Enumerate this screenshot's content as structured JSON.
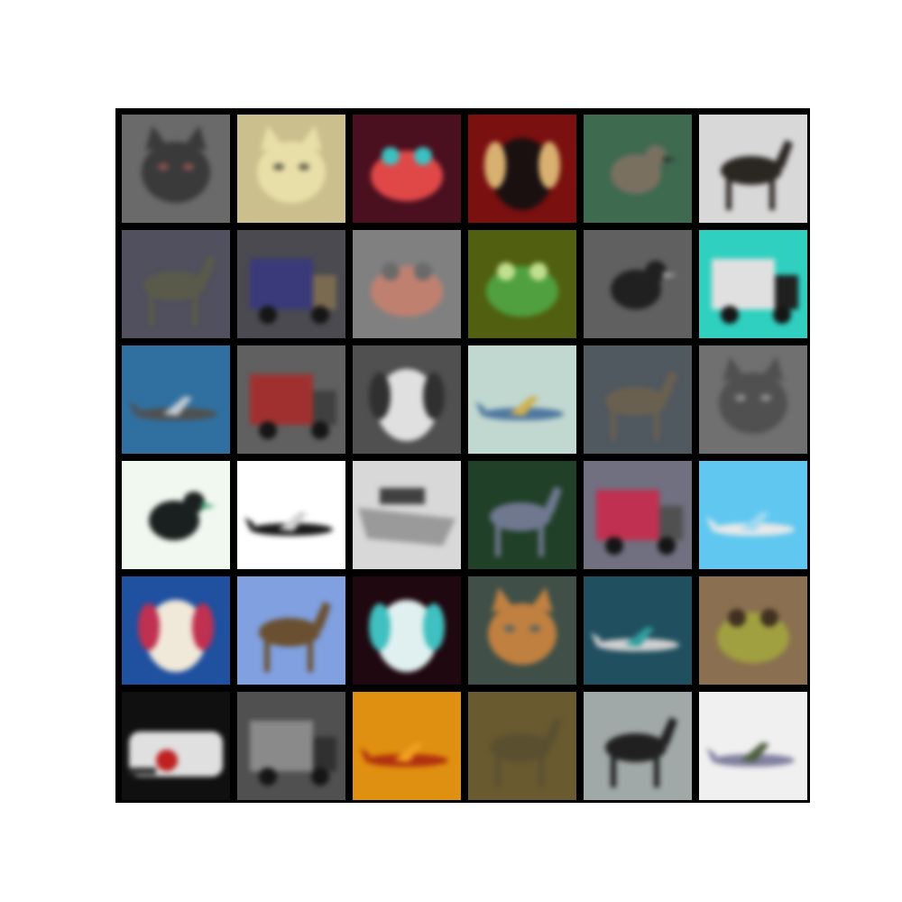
{
  "grid": {
    "rows": 6,
    "cols": 6,
    "frame_color": "#000000",
    "tiles": [
      {
        "subject": "cat",
        "bg": "#6a6a6a",
        "fg": "#3a3a3a",
        "accent": "#8a5050"
      },
      {
        "subject": "cat",
        "bg": "#cbc08d",
        "fg": "#e8dfa8",
        "accent": "#6b6650"
      },
      {
        "subject": "frog",
        "bg": "#4a1020",
        "fg": "#e04848",
        "accent": "#3cc0c0"
      },
      {
        "subject": "dog",
        "bg": "#7a1010",
        "fg": "#1a1010",
        "accent": "#d8b070"
      },
      {
        "subject": "bird",
        "bg": "#3e6a50",
        "fg": "#7a7060",
        "accent": "#2a3a30"
      },
      {
        "subject": "horse",
        "bg": "#d8d8d8",
        "fg": "#2a2622",
        "accent": "#a0a0a0"
      },
      {
        "subject": "deer",
        "bg": "#50505e",
        "fg": "#5a5a4a",
        "accent": "#404050"
      },
      {
        "subject": "truck",
        "bg": "#4a4a50",
        "fg": "#3a3a7a",
        "accent": "#7a6a50"
      },
      {
        "subject": "frog",
        "bg": "#808080",
        "fg": "#c08070",
        "accent": "#6a6a6a"
      },
      {
        "subject": "frog",
        "bg": "#506010",
        "fg": "#50a040",
        "accent": "#c0e090"
      },
      {
        "subject": "bird",
        "bg": "#606060",
        "fg": "#202020",
        "accent": "#a0a0a0"
      },
      {
        "subject": "truck",
        "bg": "#30d0c0",
        "fg": "#e0e0e0",
        "accent": "#202020"
      },
      {
        "subject": "airplane",
        "bg": "#3070a0",
        "fg": "#505050",
        "accent": "#c0c8d0"
      },
      {
        "subject": "truck",
        "bg": "#606060",
        "fg": "#a03030",
        "accent": "#404040"
      },
      {
        "subject": "dog",
        "bg": "#505050",
        "fg": "#e0e0e0",
        "accent": "#303030"
      },
      {
        "subject": "airplane",
        "bg": "#c0d8d0",
        "fg": "#5078a0",
        "accent": "#d0b050"
      },
      {
        "subject": "deer",
        "bg": "#505860",
        "fg": "#6a6050",
        "accent": "#404048"
      },
      {
        "subject": "cat",
        "bg": "#707070",
        "fg": "#505050",
        "accent": "#8a8a8a"
      },
      {
        "subject": "bird",
        "bg": "#f0f8f0",
        "fg": "#1a2020",
        "accent": "#40a070"
      },
      {
        "subject": "airplane",
        "bg": "#ffffff",
        "fg": "#1a1a1a",
        "accent": "#d0d0d0"
      },
      {
        "subject": "ship",
        "bg": "#d8d8d8",
        "fg": "#404040",
        "accent": "#9a9a9a"
      },
      {
        "subject": "deer",
        "bg": "#204028",
        "fg": "#707890",
        "accent": "#305030"
      },
      {
        "subject": "truck",
        "bg": "#707080",
        "fg": "#c03050",
        "accent": "#505050"
      },
      {
        "subject": "airplane",
        "bg": "#60c8f0",
        "fg": "#e8e8e8",
        "accent": "#a0d8f0"
      },
      {
        "subject": "dog",
        "bg": "#2050a0",
        "fg": "#f0e8d8",
        "accent": "#c03050"
      },
      {
        "subject": "horse",
        "bg": "#80a0e0",
        "fg": "#6a5030",
        "accent": "#d0d8c0"
      },
      {
        "subject": "dog",
        "bg": "#200810",
        "fg": "#e0f0f0",
        "accent": "#40c0c0"
      },
      {
        "subject": "cat",
        "bg": "#405048",
        "fg": "#c08040",
        "accent": "#606860"
      },
      {
        "subject": "airplane",
        "bg": "#205060",
        "fg": "#d0d0d0",
        "accent": "#30a0a0"
      },
      {
        "subject": "frog",
        "bg": "#8a7050",
        "fg": "#a0a040",
        "accent": "#403020"
      },
      {
        "subject": "automobile",
        "bg": "#101010",
        "fg": "#e0e0e0",
        "accent": "#c02020"
      },
      {
        "subject": "truck",
        "bg": "#505050",
        "fg": "#8a8a8a",
        "accent": "#303030"
      },
      {
        "subject": "airplane",
        "bg": "#e09010",
        "fg": "#b03010",
        "accent": "#f0a020"
      },
      {
        "subject": "deer",
        "bg": "#6a5a30",
        "fg": "#5a5030",
        "accent": "#807050"
      },
      {
        "subject": "deer",
        "bg": "#a0a8a8",
        "fg": "#202020",
        "accent": "#c0c8d0"
      },
      {
        "subject": "airplane",
        "bg": "#f0f0f0",
        "fg": "#8080a0",
        "accent": "#506040"
      }
    ]
  }
}
